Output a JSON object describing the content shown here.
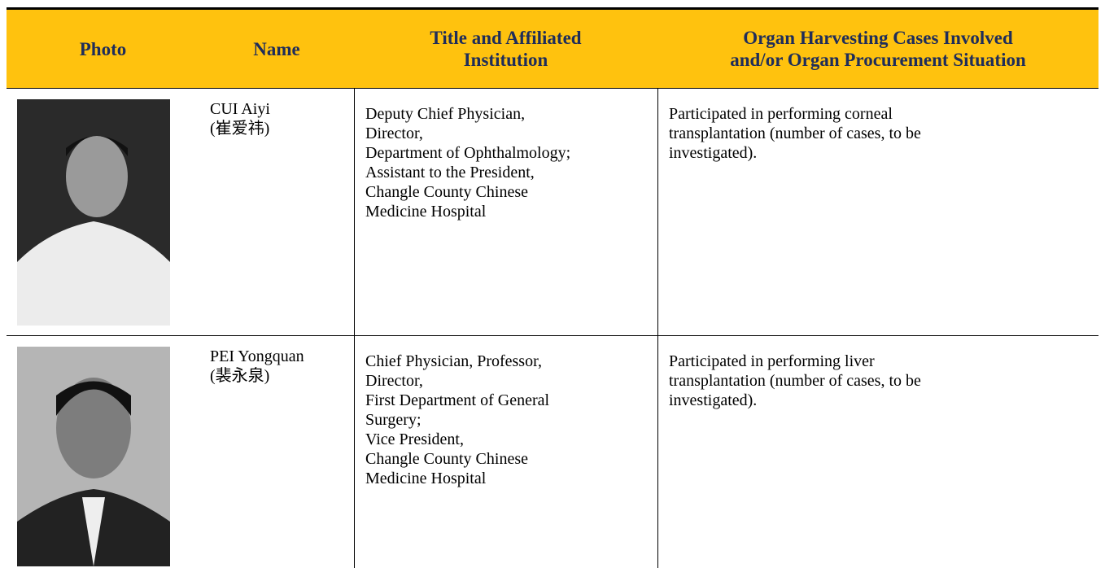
{
  "table": {
    "header": [
      "Photo",
      "Name",
      [
        "Title and Affiliated",
        "Institution"
      ],
      [
        "Organ Harvesting Cases Involved",
        "and/or Organ Procurement Situation"
      ]
    ],
    "rows": [
      {
        "name": [
          "CUI Aiyi",
          "(崔爱祎)"
        ],
        "title": [
          "Deputy Chief Physician,",
          "Director,",
          "Department of Ophthalmology;",
          "Assistant to the President,",
          "Changle County Chinese",
          "Medicine Hospital"
        ],
        "cases": [
          "Participated in performing corneal",
          "transplantation (number of cases, to be",
          "investigated)."
        ]
      },
      {
        "name": [
          "PEI Yongquan",
          "(裴永泉)"
        ],
        "title": [
          "Chief Physician, Professor,",
          "Director,",
          "First Department of General",
          "Surgery;",
          "Vice President,",
          "Changle County Chinese",
          "Medicine Hospital"
        ],
        "cases": [
          "Participated in performing liver",
          "transplantation (number of cases, to be",
          "investigated)."
        ]
      }
    ]
  }
}
